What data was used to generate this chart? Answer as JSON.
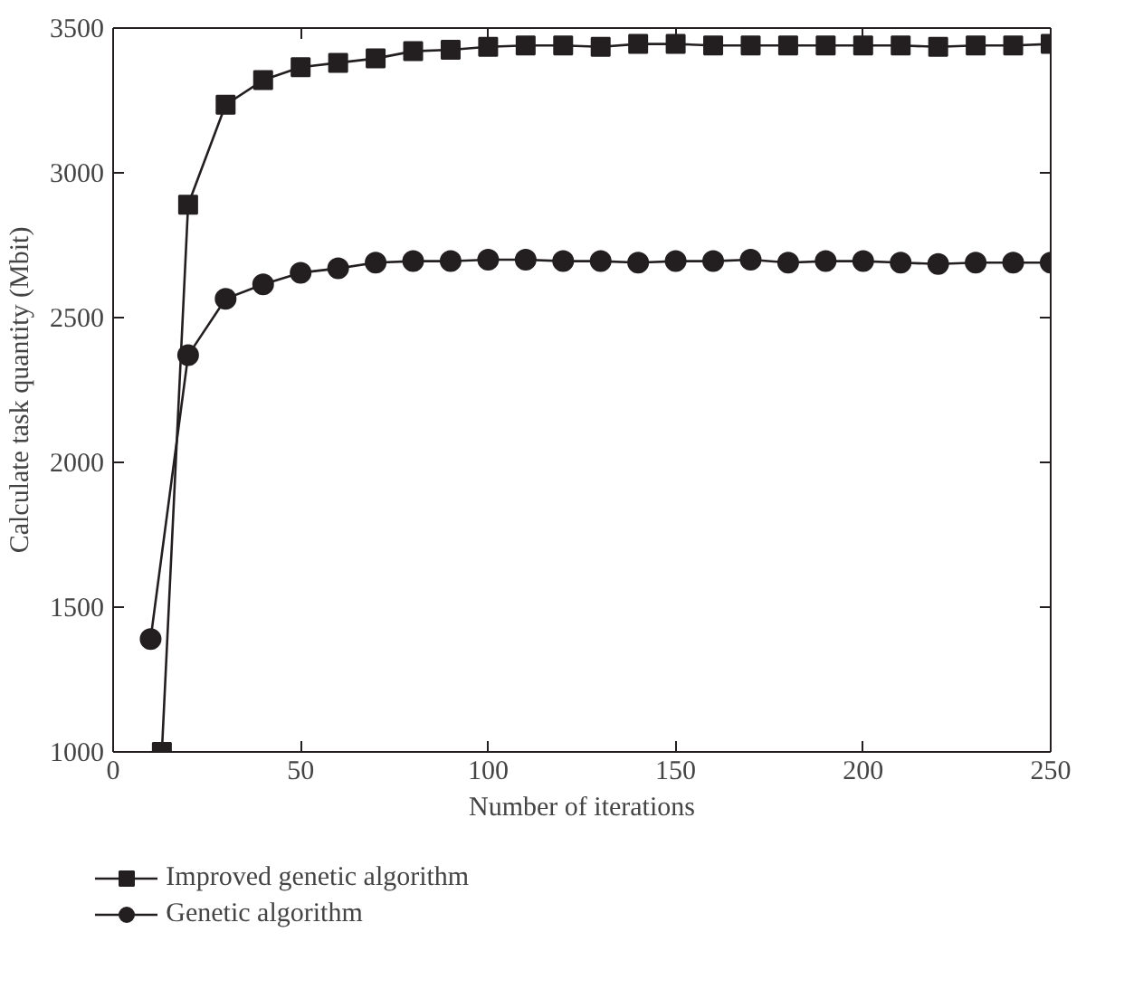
{
  "chart_data": {
    "type": "line",
    "xlabel": "Number of iterations",
    "ylabel": "Calculate task quantity (Mbit)",
    "xlim": [
      0,
      250
    ],
    "ylim": [
      1000,
      3500
    ],
    "xticks": [
      0,
      50,
      100,
      150,
      200,
      250
    ],
    "yticks": [
      1000,
      1500,
      2000,
      2500,
      3000,
      3500
    ],
    "grid": false,
    "legend": "bottom",
    "series": [
      {
        "name": "Improved genetic algorithm",
        "color": "#231f20",
        "marker": "square",
        "x": [
          13,
          20,
          30,
          40,
          50,
          60,
          70,
          80,
          90,
          100,
          110,
          120,
          130,
          140,
          150,
          160,
          170,
          180,
          190,
          200,
          210,
          220,
          230,
          240,
          250
        ],
        "values": [
          1000,
          2890,
          3235,
          3320,
          3365,
          3380,
          3395,
          3420,
          3425,
          3435,
          3440,
          3440,
          3435,
          3445,
          3445,
          3440,
          3440,
          3440,
          3440,
          3440,
          3440,
          3435,
          3440,
          3440,
          3445
        ]
      },
      {
        "name": "Genetic algorithm",
        "color": "#231f20",
        "marker": "circle",
        "x": [
          10,
          20,
          30,
          40,
          50,
          60,
          70,
          80,
          90,
          100,
          110,
          120,
          130,
          140,
          150,
          160,
          170,
          180,
          190,
          200,
          210,
          220,
          230,
          240,
          250
        ],
        "values": [
          1390,
          2370,
          2565,
          2615,
          2655,
          2670,
          2690,
          2695,
          2695,
          2700,
          2700,
          2695,
          2695,
          2690,
          2695,
          2695,
          2700,
          2690,
          2695,
          2695,
          2690,
          2685,
          2690,
          2690,
          2690
        ]
      }
    ]
  }
}
